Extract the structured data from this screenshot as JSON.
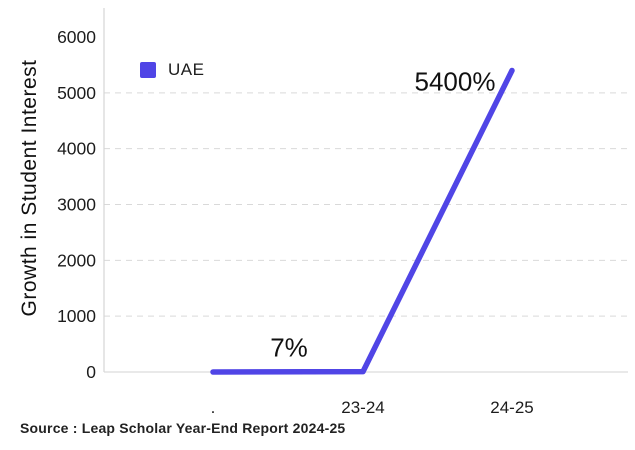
{
  "page": {
    "background": "#ffffff"
  },
  "chart": {
    "y_axis_title": "Growth in Student Interest",
    "legend": [
      {
        "label": "UAE",
        "color": "#5045e6"
      }
    ],
    "source": "Source : Leap Scholar Year-End Report 2024-25"
  },
  "chart_data": {
    "type": "line",
    "title": "",
    "categories": [
      ".",
      "23-24",
      "24-25"
    ],
    "series": [
      {
        "name": "UAE",
        "color": "#5045e6",
        "values": [
          0,
          7,
          5400
        ]
      }
    ],
    "annotations": [
      {
        "category_index": 1,
        "text": "7%"
      },
      {
        "category_index": 2,
        "text": "5400%"
      }
    ],
    "xlabel": "",
    "ylabel": "Growth in Student Interest",
    "ylim": [
      0,
      6000
    ],
    "yticks": [
      0,
      1000,
      2000,
      3000,
      4000,
      5000,
      6000
    ],
    "grid": "horizontal-dashed",
    "legend_position": "top-left",
    "axis_color": "#d6d6d6",
    "gridline_color": "#d9d9d9",
    "zero_line_color": "#e2e2e2",
    "tick_text_color": "#1c1c1c",
    "annotation_text_color": "#111111"
  }
}
